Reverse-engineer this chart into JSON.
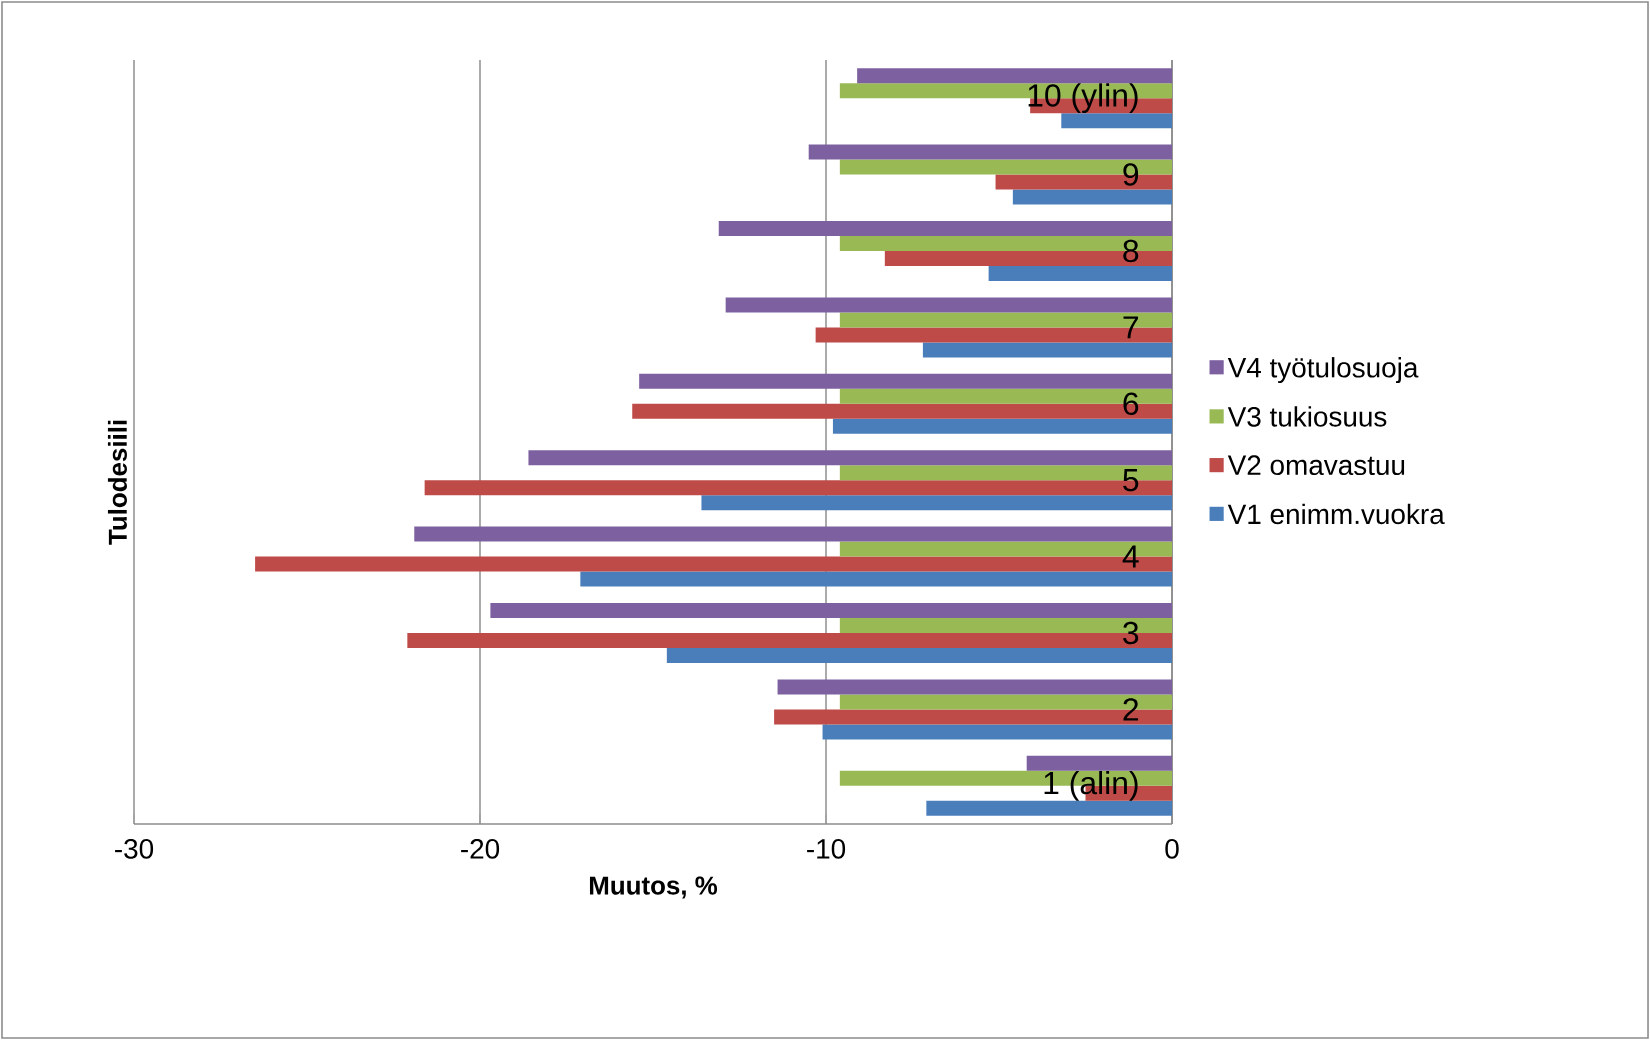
{
  "chart_data": {
    "type": "bar",
    "orientation": "horizontal",
    "xlabel": "Muutos, %",
    "ylabel": "Tulodesiili",
    "categories": [
      "10 (ylin)",
      "9",
      "8",
      "7",
      "6",
      "5",
      "4",
      "3",
      "2",
      "1 (alin)"
    ],
    "series": [
      {
        "name": "V1 enimm.vuokra",
        "color": "#4a7ebb",
        "values": [
          -3.2,
          -4.6,
          -5.3,
          -7.2,
          -9.8,
          -13.6,
          -17.1,
          -14.6,
          -10.1,
          -7.1
        ]
      },
      {
        "name": "V2 omavastuu",
        "color": "#be4b48",
        "values": [
          -4.1,
          -5.1,
          -8.3,
          -10.3,
          -15.6,
          -21.6,
          -26.5,
          -22.1,
          -11.5,
          -2.5
        ]
      },
      {
        "name": "V3 tukiosuus",
        "color": "#98b954",
        "values": [
          -9.6,
          -9.6,
          -9.6,
          -9.6,
          -9.6,
          -9.6,
          -9.6,
          -9.6,
          -9.6,
          -9.6
        ]
      },
      {
        "name": "V4 työtulosuoja",
        "color": "#7d60a0",
        "values": [
          -9.1,
          -10.5,
          -13.1,
          -12.9,
          -15.4,
          -18.6,
          -21.9,
          -19.7,
          -11.4,
          -4.2
        ]
      }
    ],
    "xlim": [
      -30,
      0
    ],
    "xticks": [
      -30,
      -20,
      -10,
      0
    ],
    "grid": "x",
    "legend": "right"
  }
}
